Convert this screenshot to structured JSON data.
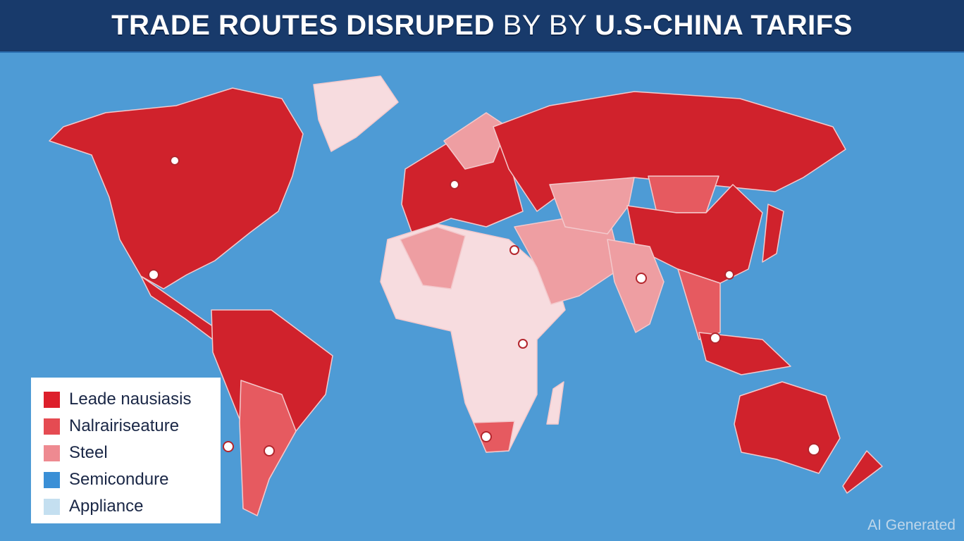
{
  "header": {
    "title_bold_1": "TRADE ROUTES DISRUPED",
    "title_thin": " BY BY ",
    "title_bold_2": "U.S-CHINA TARIFS"
  },
  "colors": {
    "ocean": "#4e9bd5",
    "header": "#183a6b",
    "dark_red": "#d0222c",
    "medium_red": "#e65a60",
    "pink": "#ee9ea2",
    "light_pink": "#f7dcdf",
    "blue": "#3a8fd6",
    "light_blue": "#c4dff0"
  },
  "legend": {
    "items": [
      {
        "label": "Leade nausiasis",
        "color": "#dd1f2b"
      },
      {
        "label": "Nalrairiseature",
        "color": "#e54b52"
      },
      {
        "label": "Steel",
        "color": "#ee8a91"
      },
      {
        "label": "Semicondure",
        "color": "#3a8fd6"
      },
      {
        "label": "Appliance",
        "color": "#c4dff0"
      }
    ]
  },
  "watermark": "AI Generated"
}
